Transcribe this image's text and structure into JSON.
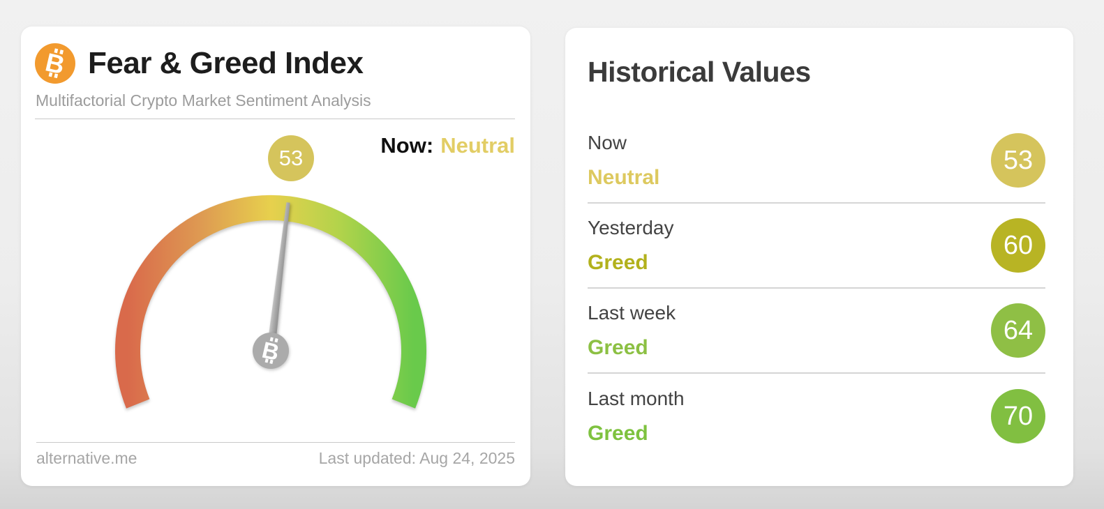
{
  "fear_greed_card": {
    "title": "Fear & Greed Index",
    "subtitle": "Multifactorial Crypto Market Sentiment Analysis",
    "now_label": "Now:",
    "now_classification": "Neutral",
    "now_classification_color": "#e2cd65",
    "gauge_badge": {
      "value": "53",
      "color": "#d5c45c"
    },
    "footer": {
      "source": "alternative.me",
      "last_updated": "Last updated: Aug 24, 2025"
    }
  },
  "historical_card": {
    "title": "Historical Values",
    "rows": [
      {
        "label": "Now",
        "classification": "Neutral",
        "value": "53",
        "badge_color": "#d5c45c",
        "classification_color": "#ddc95f"
      },
      {
        "label": "Yesterday",
        "classification": "Greed",
        "value": "60",
        "badge_color": "#b8b424",
        "classification_color": "#b2b11c"
      },
      {
        "label": "Last week",
        "classification": "Greed",
        "value": "64",
        "badge_color": "#8fbf45",
        "classification_color": "#8cc043"
      },
      {
        "label": "Last month",
        "classification": "Greed",
        "value": "70",
        "badge_color": "#81bf41",
        "classification_color": "#7ec23f"
      }
    ]
  },
  "icons": {
    "bitcoin_glyph": "B",
    "bitcoin_orange": "#f29a2e",
    "hub_gray": "#ababab"
  },
  "chart_data": {
    "type": "gauge",
    "title": "Fear & Greed Index",
    "value": 53,
    "classification": "Neutral",
    "range": [
      0,
      100
    ],
    "arc_sweep_degrees": 224,
    "scale_colors": [
      "#d96a4b",
      "#de9b52",
      "#e7d04d",
      "#b2d34b",
      "#69ca4b"
    ],
    "needle_color": "#a3a3a3",
    "historical": [
      {
        "label": "Now",
        "value": 53,
        "classification": "Neutral"
      },
      {
        "label": "Yesterday",
        "value": 60,
        "classification": "Greed"
      },
      {
        "label": "Last week",
        "value": 64,
        "classification": "Greed"
      },
      {
        "label": "Last month",
        "value": 70,
        "classification": "Greed"
      }
    ],
    "last_updated": "Aug 24, 2025",
    "source": "alternative.me"
  }
}
